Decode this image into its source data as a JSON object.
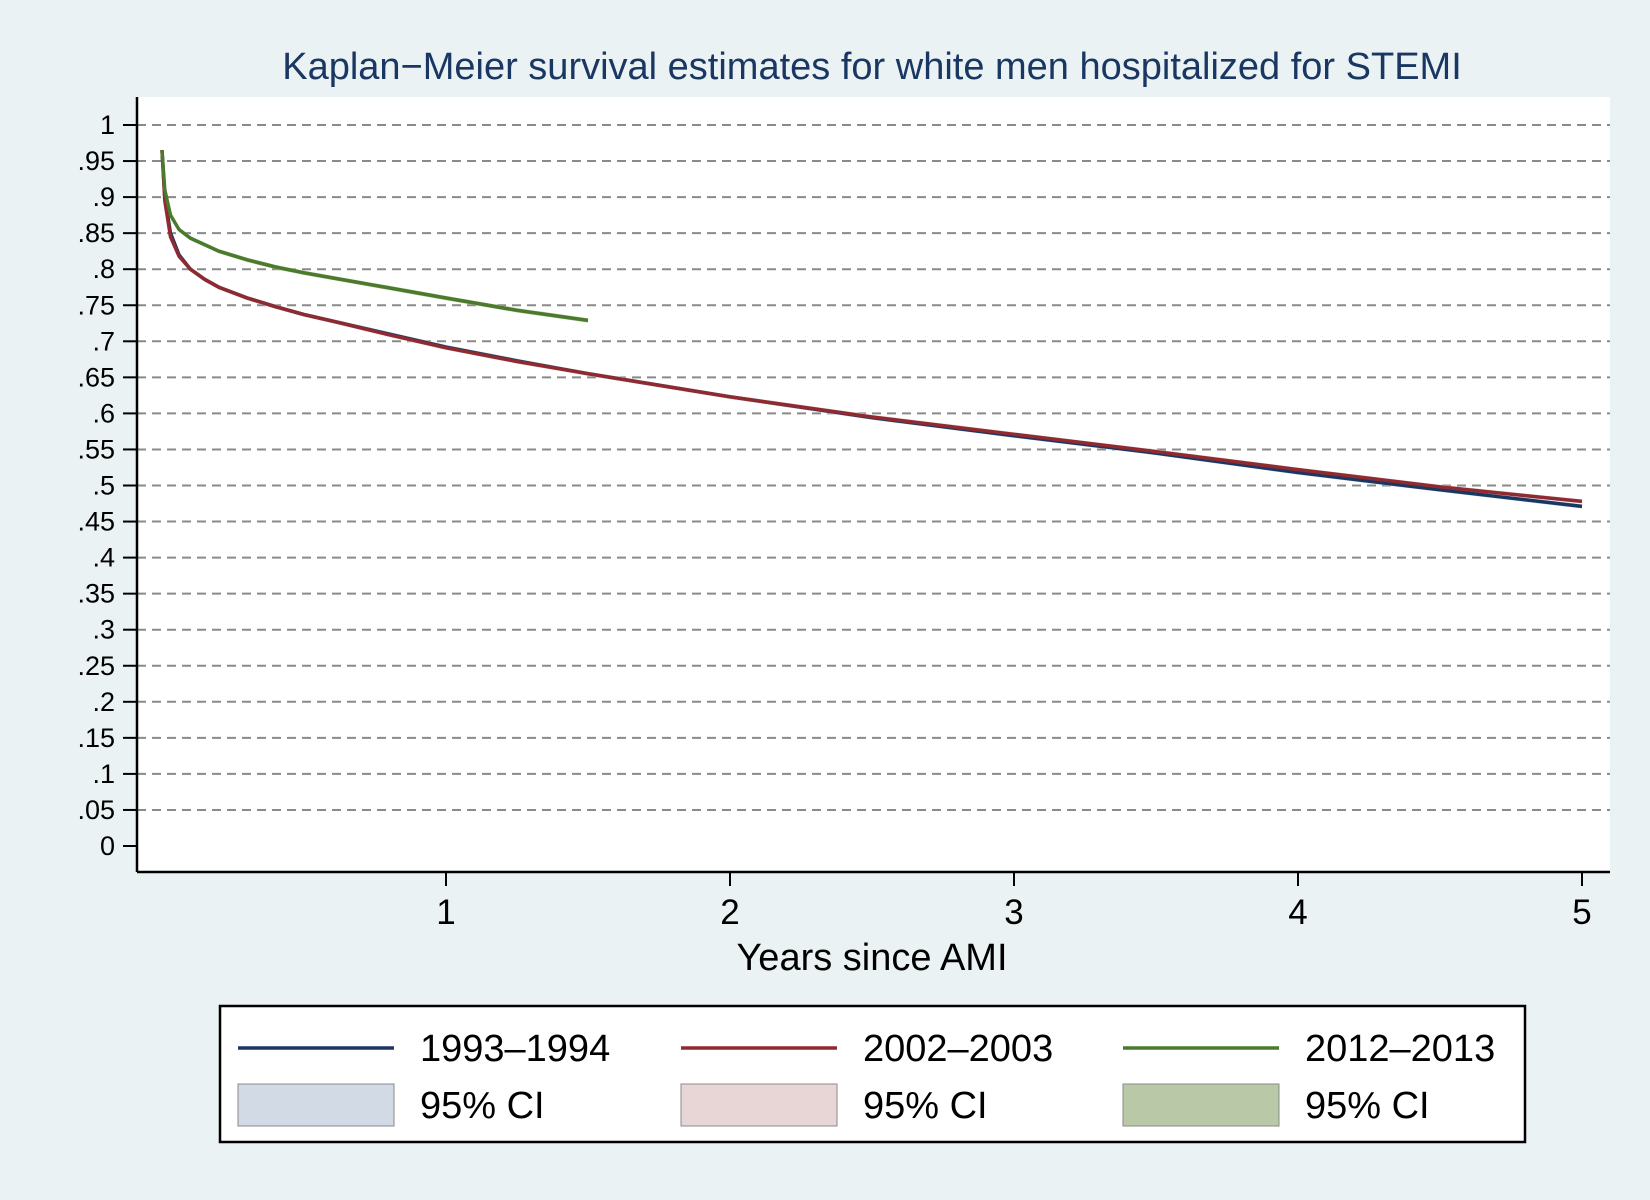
{
  "chart_data": {
    "type": "line",
    "title": "Kaplan−Meier survival estimates for white men hospitalized for STEMI",
    "xlabel": "Years since AMI",
    "ylabel": "",
    "xlim": [
      0,
      5
    ],
    "ylim": [
      0,
      1
    ],
    "x_ticks": [
      1,
      2,
      3,
      4,
      5
    ],
    "x_tick_labels": [
      "1",
      "2",
      "3",
      "4",
      "5"
    ],
    "y_ticks": [
      0,
      0.05,
      0.1,
      0.15,
      0.2,
      0.25,
      0.3,
      0.35,
      0.4,
      0.45,
      0.5,
      0.55,
      0.6,
      0.65,
      0.7,
      0.75,
      0.8,
      0.85,
      0.9,
      0.95,
      1
    ],
    "y_tick_labels": [
      "0",
      ".05",
      ".1",
      ".15",
      ".2",
      ".25",
      ".3",
      ".35",
      ".4",
      ".45",
      ".5",
      ".55",
      ".6",
      ".65",
      ".7",
      ".75",
      ".8",
      ".85",
      ".9",
      ".95",
      "1"
    ],
    "grid": true,
    "legend_position": "bottom",
    "series": [
      {
        "name": "1993–1994",
        "color": "#1a3763",
        "ci_label": "95% CI",
        "ci_color": "#d1dae5",
        "x": [
          0.0,
          0.01,
          0.03,
          0.06,
          0.1,
          0.15,
          0.2,
          0.3,
          0.4,
          0.5,
          0.6,
          0.8,
          1.0,
          1.25,
          1.5,
          2.0,
          2.5,
          3.0,
          3.5,
          4.0,
          4.5,
          5.0
        ],
        "y": [
          0.965,
          0.9,
          0.85,
          0.82,
          0.8,
          0.786,
          0.775,
          0.76,
          0.748,
          0.737,
          0.728,
          0.71,
          0.692,
          0.673,
          0.655,
          0.623,
          0.594,
          0.569,
          0.545,
          0.518,
          0.494,
          0.471
        ]
      },
      {
        "name": "2002–2003",
        "color": "#8f2a30",
        "ci_label": "95% CI",
        "ci_color": "#e8d5d6",
        "x": [
          0.0,
          0.01,
          0.03,
          0.06,
          0.1,
          0.15,
          0.2,
          0.3,
          0.4,
          0.5,
          0.6,
          0.8,
          1.0,
          1.25,
          1.5,
          2.0,
          2.5,
          3.0,
          3.5,
          4.0,
          4.5,
          5.0
        ],
        "y": [
          0.965,
          0.895,
          0.845,
          0.818,
          0.8,
          0.786,
          0.775,
          0.76,
          0.748,
          0.737,
          0.728,
          0.709,
          0.691,
          0.672,
          0.655,
          0.623,
          0.595,
          0.571,
          0.547,
          0.522,
          0.498,
          0.478
        ]
      },
      {
        "name": "2012–2013",
        "color": "#4a7a2c",
        "ci_label": "95% CI",
        "ci_color": "#b9c8a7",
        "x": [
          0.0,
          0.01,
          0.03,
          0.06,
          0.1,
          0.15,
          0.2,
          0.3,
          0.4,
          0.5,
          0.6,
          0.8,
          1.0,
          1.25,
          1.5
        ],
        "y": [
          0.965,
          0.91,
          0.875,
          0.855,
          0.843,
          0.834,
          0.825,
          0.813,
          0.803,
          0.795,
          0.788,
          0.774,
          0.76,
          0.743,
          0.729
        ]
      }
    ]
  }
}
